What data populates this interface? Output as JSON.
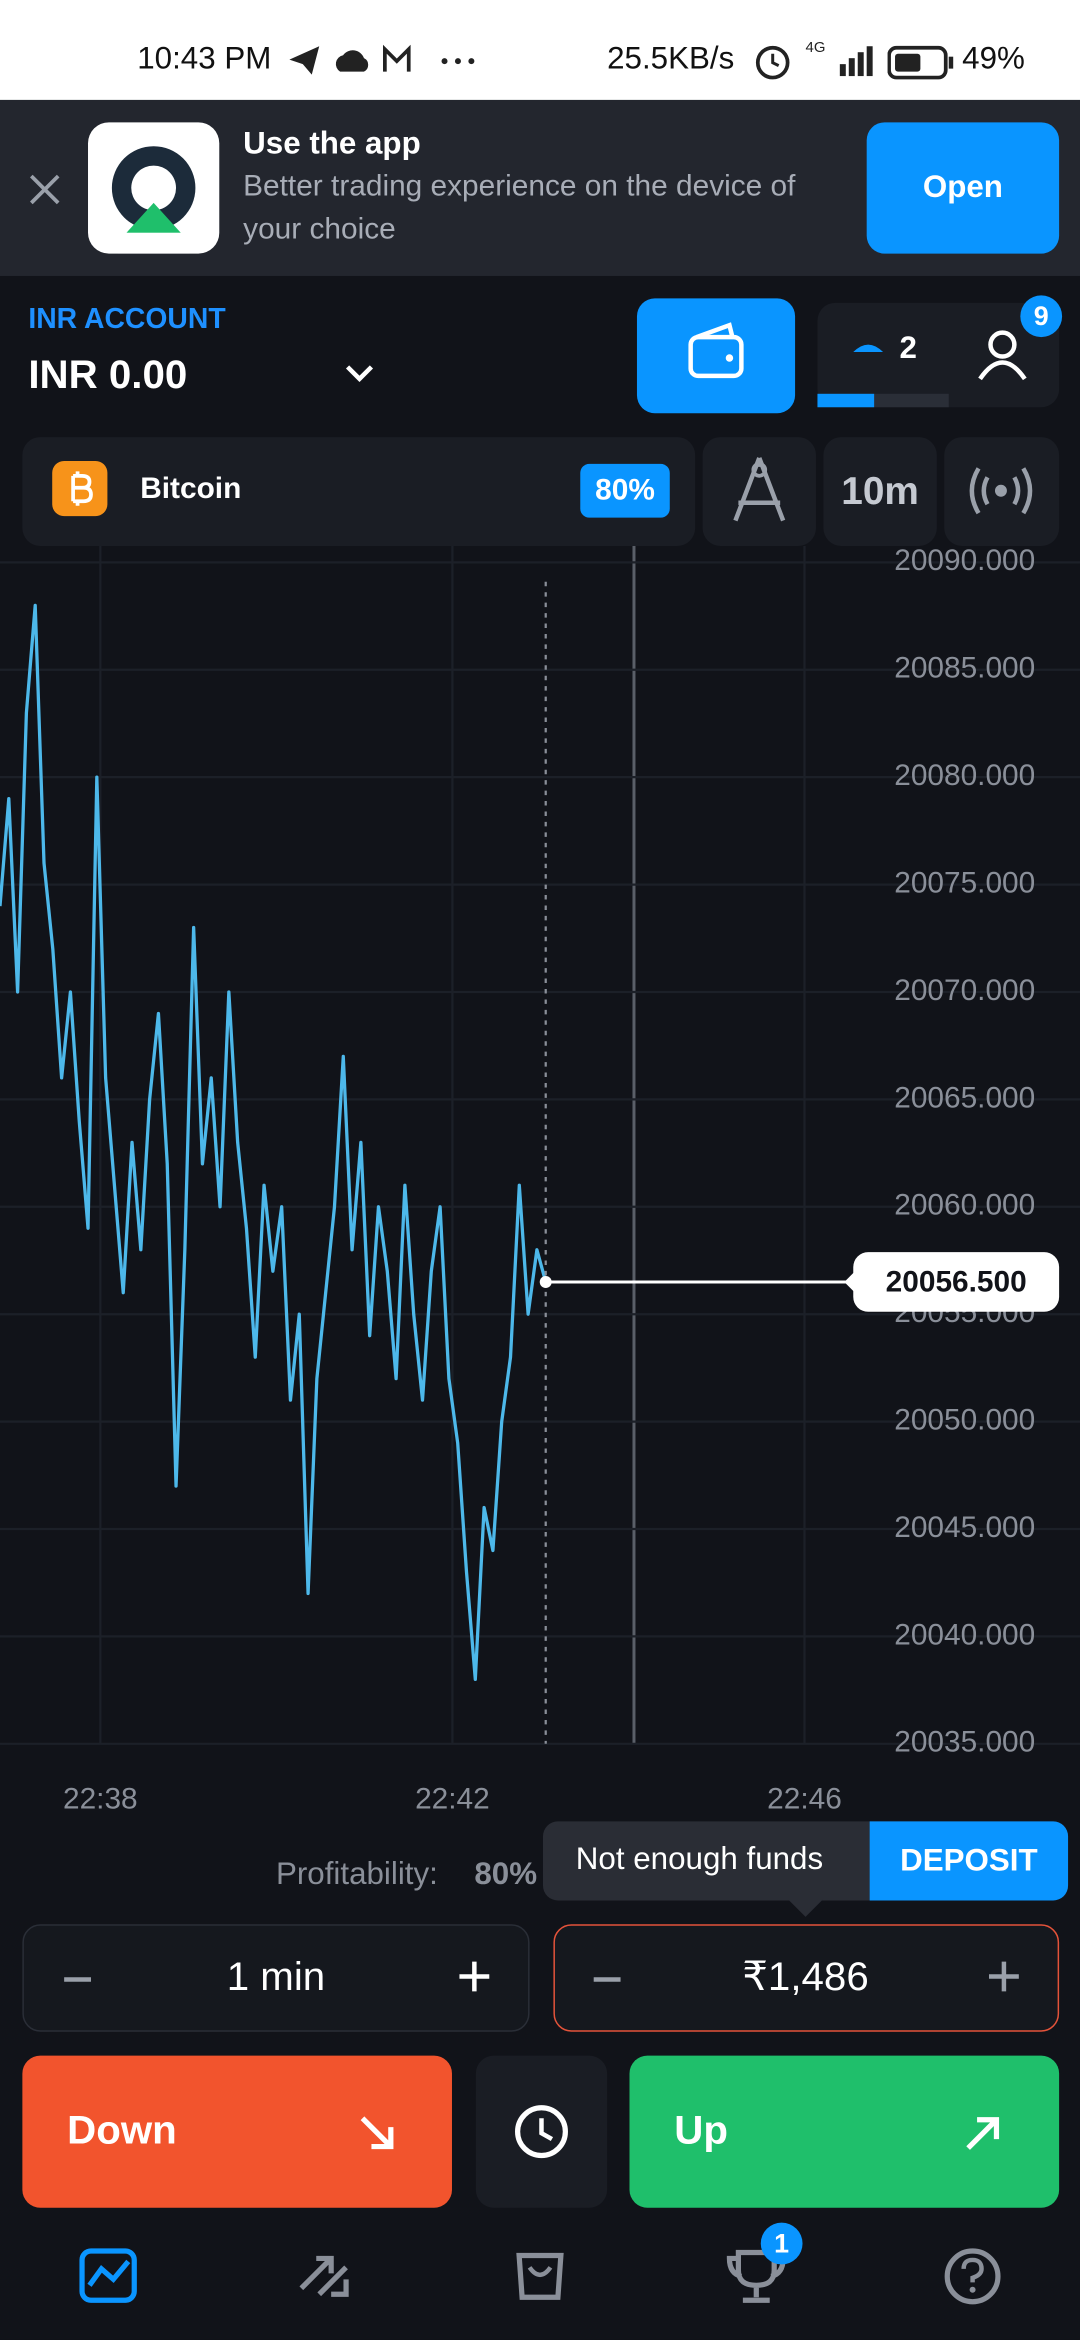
{
  "status_bar": {
    "time": "10:43 PM",
    "speed": "25.5KB/s",
    "network": "4G",
    "battery": "49%"
  },
  "banner": {
    "title": "Use the app",
    "subtitle_line1": "Better trading experience on the device of",
    "subtitle_line2": "your choice",
    "button": "Open"
  },
  "account": {
    "label": "INR ACCOUNT",
    "balance": "INR 0.00",
    "level": "2",
    "notifications": "9"
  },
  "asset": {
    "name": "Bitcoin",
    "payout": "80%",
    "timeframe": "10m"
  },
  "chart_data": {
    "type": "line",
    "series": [
      {
        "color": "#4db8ea",
        "values": [
          20074,
          20079,
          20070,
          20083,
          20088,
          20076,
          20072,
          20066,
          20070,
          20064,
          20059,
          20080,
          20066,
          20061,
          20056,
          20063,
          20058,
          20065,
          20069,
          20062,
          20047,
          20058,
          20073,
          20062,
          20066,
          20060,
          20070,
          20063,
          20059,
          20053,
          20061,
          20057,
          20060,
          20051,
          20055,
          20042,
          20052,
          20056,
          20060,
          20067,
          20058,
          20063,
          20054,
          20060,
          20057,
          20052,
          20061,
          20055,
          20051,
          20057,
          20060,
          20052,
          20049,
          20043,
          20038,
          20046,
          20044,
          20050,
          20053,
          20061,
          20055,
          20058,
          20056.5
        ]
      }
    ],
    "xlim": [
      0,
      122.7
    ],
    "xticks": [
      {
        "value": 11.4,
        "label": "22:38"
      },
      {
        "value": 51.4,
        "label": "22:42"
      },
      {
        "value": 91.4,
        "label": "22:46"
      }
    ],
    "ylim": [
      20035,
      20090
    ],
    "yticks": [
      {
        "value": 20035,
        "label": "20035.000"
      },
      {
        "value": 20040,
        "label": "20040.000"
      },
      {
        "value": 20045,
        "label": "20045.000"
      },
      {
        "value": 20050,
        "label": "20050.000"
      },
      {
        "value": 20055,
        "label": "20055.000"
      },
      {
        "value": 20060,
        "label": "20060.000"
      },
      {
        "value": 20065,
        "label": "20065.000"
      },
      {
        "value": 20070,
        "label": "20070.000"
      },
      {
        "value": 20075,
        "label": "20075.000"
      },
      {
        "value": 20080,
        "label": "20080.000"
      },
      {
        "value": 20085,
        "label": "20085.000"
      },
      {
        "value": 20090,
        "label": "20090.000"
      }
    ],
    "grid": true,
    "current_price": {
      "value": 20056.5,
      "label": "20056.500"
    }
  },
  "trade": {
    "profitability_label": "Profitability:",
    "profitability": "80%",
    "warning": "Not enough funds",
    "deposit": "DEPOSIT",
    "duration": "1 min",
    "amount": "₹1,486",
    "down": "Down",
    "up": "Up"
  },
  "nav": {
    "trophy_badge": "1"
  }
}
